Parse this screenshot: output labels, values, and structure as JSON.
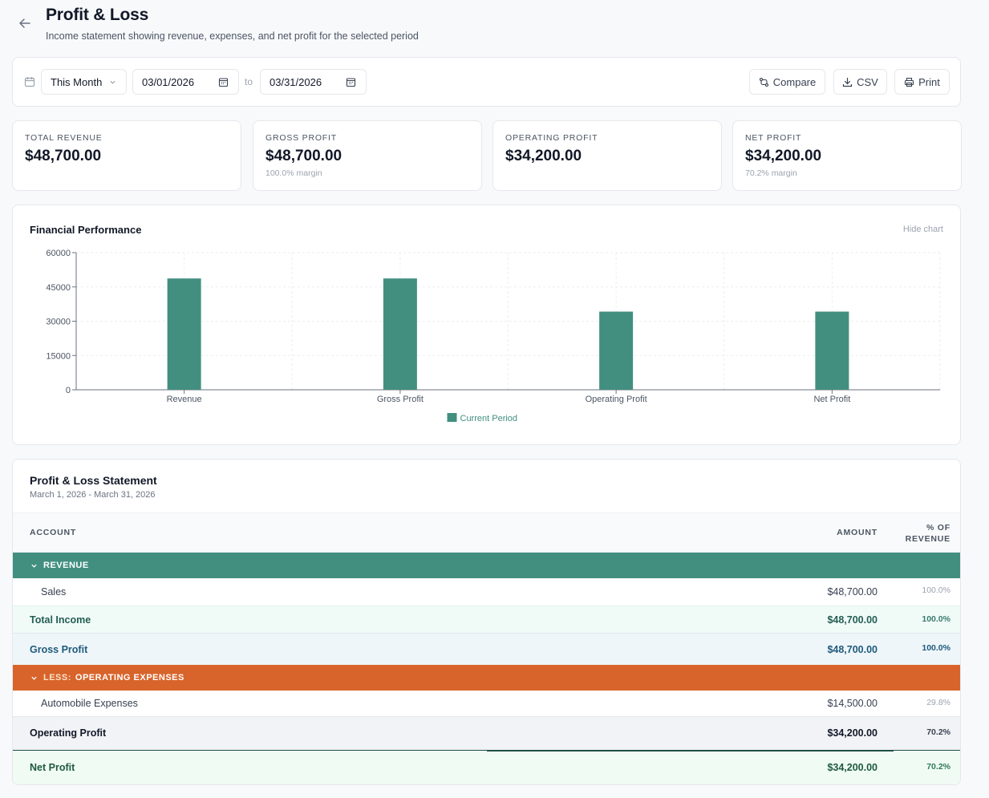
{
  "header": {
    "title": "Profit & Loss",
    "subtitle": "Income statement showing revenue, expenses, and net profit for the selected period"
  },
  "toolbar": {
    "period": "This Month",
    "date_from": "03/01/2026",
    "to_label": "to",
    "date_to": "03/31/2026",
    "compare_label": "Compare",
    "csv_label": "CSV",
    "print_label": "Print"
  },
  "kpis": [
    {
      "label": "TOTAL REVENUE",
      "value": "$48,700.00",
      "sub": ""
    },
    {
      "label": "GROSS PROFIT",
      "value": "$48,700.00",
      "sub": "100.0% margin"
    },
    {
      "label": "OPERATING PROFIT",
      "value": "$34,200.00",
      "sub": ""
    },
    {
      "label": "NET PROFIT",
      "value": "$34,200.00",
      "sub": "70.2% margin"
    }
  ],
  "chart_card": {
    "title": "Financial Performance",
    "hide_label": "Hide chart"
  },
  "chart_data": {
    "type": "bar",
    "title": "Financial Performance",
    "categories": [
      "Revenue",
      "Gross Profit",
      "Operating Profit",
      "Net Profit"
    ],
    "series": [
      {
        "name": "Current Period",
        "values": [
          48700,
          48700,
          34200,
          34200
        ],
        "color": "#428f80"
      }
    ],
    "yticks": [
      0,
      15000,
      30000,
      45000,
      60000
    ],
    "ylim": [
      0,
      60000
    ],
    "grid": true,
    "legend": "bottom-center"
  },
  "statement": {
    "title": "Profit & Loss Statement",
    "subtitle": "March 1, 2026 - March 31, 2026",
    "columns": {
      "account": "ACCOUNT",
      "amount": "AMOUNT",
      "pct": "% OF REVENUE"
    },
    "revenue_section": {
      "label": "REVENUE",
      "color": "#428f80"
    },
    "sales": {
      "account": "Sales",
      "amount": "$48,700.00",
      "pct": "100.0%"
    },
    "total_income": {
      "account": "Total Income",
      "amount": "$48,700.00",
      "pct": "100.0%"
    },
    "gross_profit": {
      "account": "Gross Profit",
      "amount": "$48,700.00",
      "pct": "100.0%"
    },
    "expense_section": {
      "prefix": "LESS:",
      "label": "OPERATING EXPENSES",
      "color": "#d8642b"
    },
    "automobile": {
      "account": "Automobile Expenses",
      "amount": "$14,500.00",
      "pct": "29.8%"
    },
    "operating_profit": {
      "account": "Operating Profit",
      "amount": "$34,200.00",
      "pct": "70.2%"
    },
    "net_profit": {
      "account": "Net Profit",
      "amount": "$34,200.00",
      "pct": "70.2%"
    }
  }
}
